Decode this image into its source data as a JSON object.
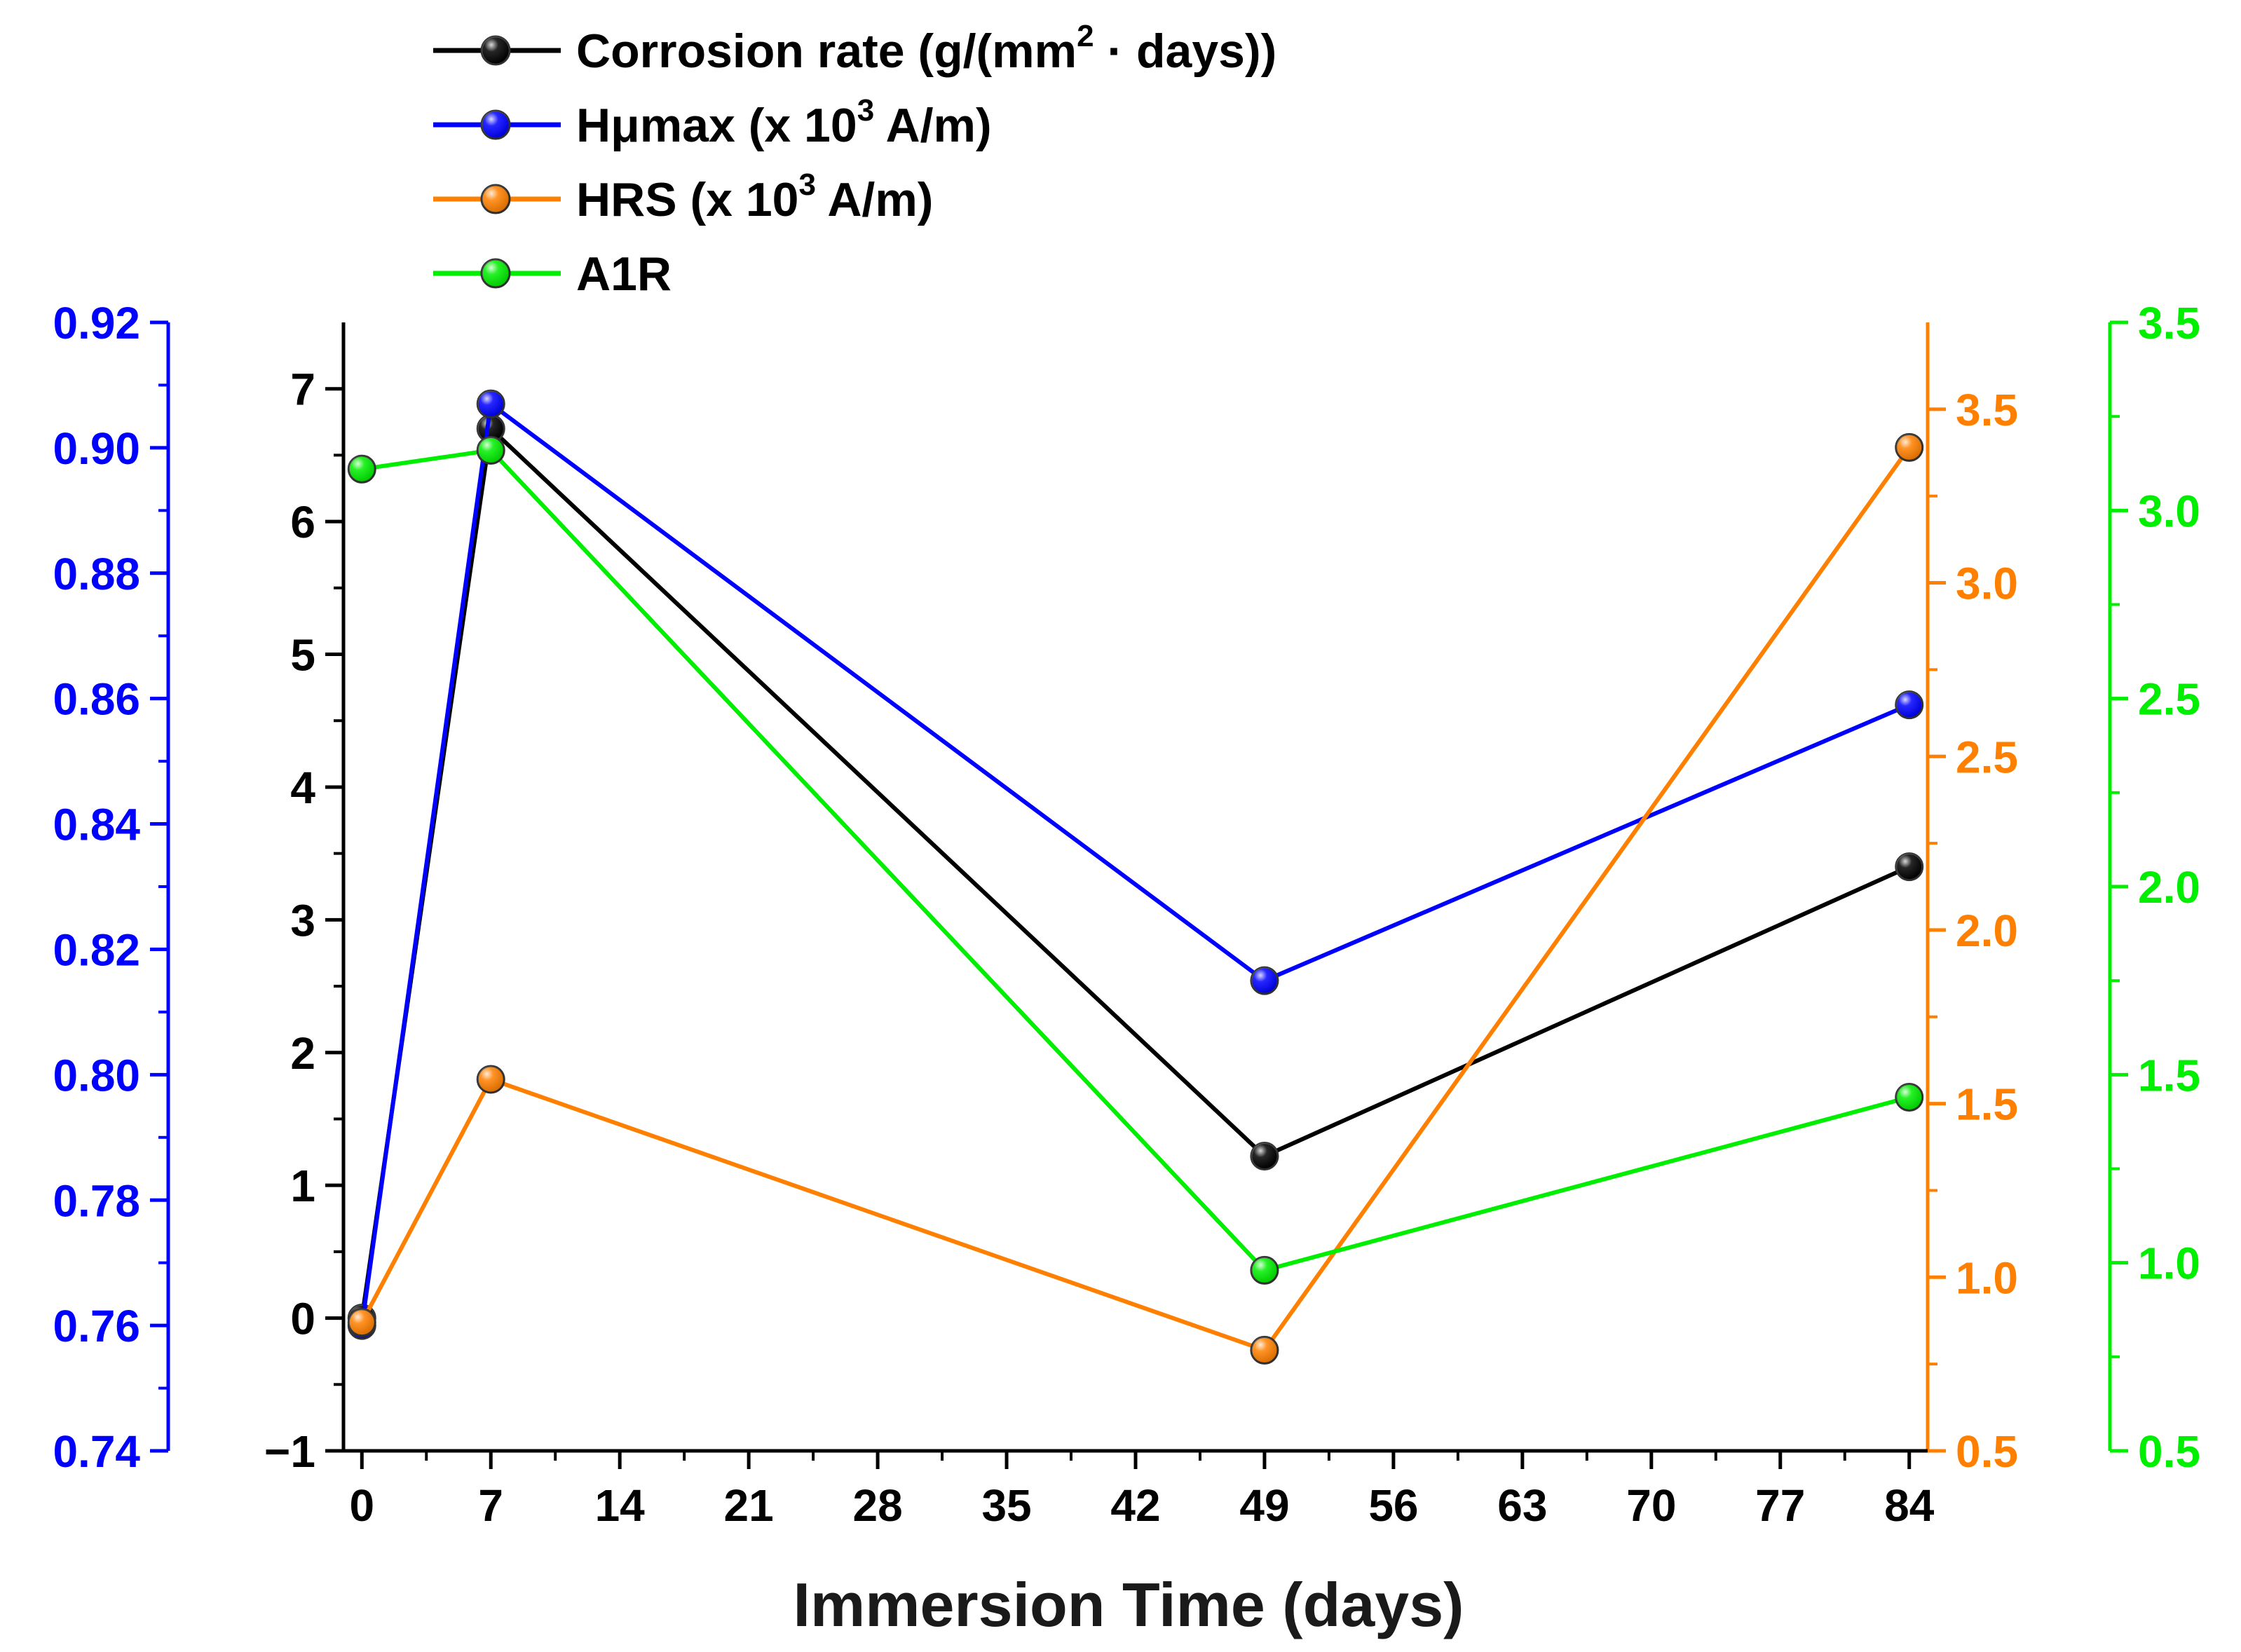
{
  "chart_data": {
    "type": "line",
    "xlabel": "Immersion Time (days)",
    "x": [
      0,
      7,
      49,
      84
    ],
    "xlim": [
      -1,
      85
    ],
    "xticks": [
      0,
      7,
      14,
      21,
      28,
      35,
      42,
      49,
      56,
      63,
      70,
      77,
      84
    ],
    "grid": false,
    "legend_position": "top-left",
    "axes": {
      "left_blue": {
        "color": "#0000ff",
        "ylim": [
          0.74,
          0.92
        ],
        "ticks": [
          "0.74",
          "0.76",
          "0.78",
          "0.80",
          "0.82",
          "0.84",
          "0.86",
          "0.88",
          "0.90",
          "0.92"
        ]
      },
      "left_black": {
        "color": "#000000",
        "ylim": [
          -1,
          7.5
        ],
        "ticks": [
          "−1",
          "0",
          "1",
          "2",
          "3",
          "4",
          "5",
          "6",
          "7"
        ]
      },
      "right_orange": {
        "color": "#ff8000",
        "ylim": [
          0.5,
          3.75
        ],
        "ticks": [
          "0.5",
          "1.0",
          "1.5",
          "2.0",
          "2.5",
          "3.0",
          "3.5"
        ]
      },
      "right_green": {
        "color": "#00ee00",
        "ylim": [
          0.5,
          3.5
        ],
        "ticks": [
          "0.5",
          "1.0",
          "1.5",
          "2.0",
          "2.5",
          "3.0",
          "3.5"
        ]
      }
    },
    "series": [
      {
        "legend_label": "Corrosion rate (g/(mm",
        "legend_sup": "2",
        "legend_suffix": " · days))",
        "color": "#000000",
        "axis": "left_black",
        "values": [
          0.0,
          6.7,
          1.22,
          3.4
        ]
      },
      {
        "legend_label": "Hμmax (x 10",
        "legend_sup": "3",
        "legend_suffix": " A/m)",
        "color": "#0000ff",
        "axis": "left_blue",
        "values": [
          0.76,
          0.907,
          0.815,
          0.859
        ]
      },
      {
        "legend_label": "HRS (x 10",
        "legend_sup": "3",
        "legend_suffix": " A/m)",
        "color": "#ff8000",
        "axis": "right_orange",
        "values": [
          0.87,
          1.57,
          0.79,
          3.39
        ]
      },
      {
        "legend_label": "A1R",
        "legend_sup": "",
        "legend_suffix": "",
        "color": "#00ee00",
        "axis": "right_green",
        "values": [
          3.11,
          3.16,
          0.98,
          1.44
        ]
      }
    ]
  }
}
